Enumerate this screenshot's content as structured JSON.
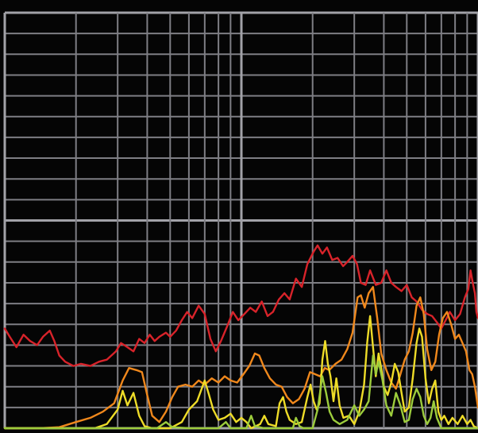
{
  "chart_data": {
    "type": "line",
    "title": "",
    "xlabel": "",
    "ylabel": "",
    "x_scale": "log",
    "x_range": [
      1,
      100
    ],
    "y_range": [
      0,
      20
    ],
    "grid": true,
    "legend": "none",
    "colors": {
      "background": "#050505",
      "grid": "#7e7e84",
      "grid_major": "#a2a2a8"
    },
    "series": [
      {
        "color": "#d8232a",
        "points": [
          [
            1,
            4.8
          ],
          [
            1.05,
            4.4
          ],
          [
            1.12,
            3.9
          ],
          [
            1.2,
            4.5
          ],
          [
            1.28,
            4.2
          ],
          [
            1.37,
            4.0
          ],
          [
            1.45,
            4.4
          ],
          [
            1.55,
            4.7
          ],
          [
            1.62,
            4.2
          ],
          [
            1.7,
            3.5
          ],
          [
            1.8,
            3.2
          ],
          [
            1.95,
            3.0
          ],
          [
            2.1,
            3.1
          ],
          [
            2.3,
            3.0
          ],
          [
            2.5,
            3.2
          ],
          [
            2.7,
            3.3
          ],
          [
            2.95,
            3.7
          ],
          [
            3.1,
            4.1
          ],
          [
            3.3,
            3.9
          ],
          [
            3.5,
            3.7
          ],
          [
            3.7,
            4.3
          ],
          [
            3.9,
            4.1
          ],
          [
            4.1,
            4.5
          ],
          [
            4.3,
            4.2
          ],
          [
            4.5,
            4.4
          ],
          [
            4.8,
            4.6
          ],
          [
            5.0,
            4.4
          ],
          [
            5.3,
            4.7
          ],
          [
            5.6,
            5.2
          ],
          [
            5.9,
            5.6
          ],
          [
            6.2,
            5.3
          ],
          [
            6.6,
            5.9
          ],
          [
            7.0,
            5.5
          ],
          [
            7.4,
            4.3
          ],
          [
            7.8,
            3.7
          ],
          [
            8.2,
            4.2
          ],
          [
            8.7,
            4.9
          ],
          [
            9.2,
            5.6
          ],
          [
            9.7,
            5.2
          ],
          [
            10.3,
            5.5
          ],
          [
            10.9,
            5.8
          ],
          [
            11.5,
            5.6
          ],
          [
            12.2,
            6.1
          ],
          [
            12.9,
            5.4
          ],
          [
            13.6,
            5.6
          ],
          [
            14.4,
            6.2
          ],
          [
            15.2,
            6.5
          ],
          [
            16.0,
            6.2
          ],
          [
            17.0,
            7.2
          ],
          [
            18.0,
            6.8
          ],
          [
            19.0,
            7.9
          ],
          [
            20.2,
            8.5
          ],
          [
            21.0,
            8.8
          ],
          [
            22.0,
            8.4
          ],
          [
            23.0,
            8.7
          ],
          [
            24.2,
            8.1
          ],
          [
            25.5,
            8.2
          ],
          [
            26.9,
            7.8
          ],
          [
            28.0,
            8.0
          ],
          [
            29.5,
            8.3
          ],
          [
            30.8,
            7.9
          ],
          [
            32.0,
            7.0
          ],
          [
            33.5,
            6.9
          ],
          [
            35.0,
            7.6
          ],
          [
            37.0,
            6.9
          ],
          [
            39.0,
            7.0
          ],
          [
            41.0,
            7.6
          ],
          [
            43.0,
            7.0
          ],
          [
            45.0,
            6.8
          ],
          [
            47.5,
            6.6
          ],
          [
            50.0,
            6.9
          ],
          [
            52.5,
            6.3
          ],
          [
            55.0,
            6.1
          ],
          [
            58.0,
            5.7
          ],
          [
            61.0,
            5.5
          ],
          [
            64.0,
            5.4
          ],
          [
            67.0,
            5.1
          ],
          [
            70.0,
            4.8
          ],
          [
            73.0,
            5.2
          ],
          [
            76.0,
            5.6
          ],
          [
            80.0,
            5.2
          ],
          [
            84.0,
            5.5
          ],
          [
            88.0,
            6.3
          ],
          [
            91.0,
            6.7
          ],
          [
            93.0,
            7.6
          ],
          [
            95.0,
            7.0
          ],
          [
            97.0,
            6.5
          ],
          [
            98.5,
            5.6
          ],
          [
            100,
            5.3
          ]
        ]
      },
      {
        "color": "#f0881c",
        "points": [
          [
            1,
            0.0
          ],
          [
            1.4,
            0.0
          ],
          [
            1.7,
            0.05
          ],
          [
            2.0,
            0.3
          ],
          [
            2.3,
            0.5
          ],
          [
            2.6,
            0.8
          ],
          [
            2.9,
            1.2
          ],
          [
            3.15,
            2.3
          ],
          [
            3.35,
            2.9
          ],
          [
            3.6,
            2.8
          ],
          [
            3.8,
            2.7
          ],
          [
            4.0,
            1.6
          ],
          [
            4.2,
            0.6
          ],
          [
            4.5,
            0.3
          ],
          [
            4.8,
            0.8
          ],
          [
            5.1,
            1.5
          ],
          [
            5.4,
            2.0
          ],
          [
            5.8,
            2.1
          ],
          [
            6.2,
            2.0
          ],
          [
            6.6,
            2.3
          ],
          [
            7.0,
            2.1
          ],
          [
            7.5,
            2.4
          ],
          [
            8.0,
            2.2
          ],
          [
            8.5,
            2.5
          ],
          [
            9.0,
            2.3
          ],
          [
            9.6,
            2.2
          ],
          [
            10.2,
            2.6
          ],
          [
            10.8,
            3.0
          ],
          [
            11.4,
            3.6
          ],
          [
            11.9,
            3.5
          ],
          [
            12.5,
            2.9
          ],
          [
            13.2,
            2.4
          ],
          [
            14.0,
            2.1
          ],
          [
            14.8,
            2.0
          ],
          [
            15.6,
            1.5
          ],
          [
            16.5,
            1.2
          ],
          [
            17.5,
            1.4
          ],
          [
            18.5,
            1.9
          ],
          [
            19.5,
            2.7
          ],
          [
            20.5,
            2.6
          ],
          [
            21.5,
            2.5
          ],
          [
            22.5,
            2.9
          ],
          [
            23.5,
            2.8
          ],
          [
            25.0,
            3.1
          ],
          [
            26.5,
            3.3
          ],
          [
            28.0,
            3.8
          ],
          [
            29.5,
            4.6
          ],
          [
            31.0,
            6.3
          ],
          [
            32.0,
            6.4
          ],
          [
            33.2,
            5.8
          ],
          [
            34.5,
            6.5
          ],
          [
            36.0,
            6.8
          ],
          [
            37.5,
            5.3
          ],
          [
            39.0,
            3.6
          ],
          [
            41.0,
            2.8
          ],
          [
            43.0,
            2.2
          ],
          [
            45.0,
            1.9
          ],
          [
            47.0,
            2.6
          ],
          [
            49.0,
            3.3
          ],
          [
            51.0,
            3.7
          ],
          [
            53.0,
            4.6
          ],
          [
            55.0,
            5.9
          ],
          [
            57.0,
            6.3
          ],
          [
            59.0,
            5.5
          ],
          [
            61.0,
            3.8
          ],
          [
            63.5,
            2.8
          ],
          [
            66.0,
            3.2
          ],
          [
            68.5,
            4.5
          ],
          [
            71.0,
            5.3
          ],
          [
            74.0,
            5.6
          ],
          [
            77.0,
            5.0
          ],
          [
            80.0,
            4.3
          ],
          [
            83.0,
            4.5
          ],
          [
            86.0,
            4.1
          ],
          [
            89.0,
            3.7
          ],
          [
            92.0,
            2.8
          ],
          [
            94.5,
            2.6
          ],
          [
            97.0,
            2.0
          ],
          [
            100,
            1.0
          ]
        ]
      },
      {
        "color": "#eedc28",
        "points": [
          [
            1,
            0.0
          ],
          [
            2.4,
            0.0
          ],
          [
            2.7,
            0.2
          ],
          [
            3.0,
            0.9
          ],
          [
            3.15,
            1.8
          ],
          [
            3.3,
            1.1
          ],
          [
            3.5,
            1.7
          ],
          [
            3.7,
            0.6
          ],
          [
            3.9,
            0.1
          ],
          [
            4.2,
            0.0
          ],
          [
            5.0,
            0.0
          ],
          [
            5.6,
            0.3
          ],
          [
            6.0,
            0.9
          ],
          [
            6.5,
            1.3
          ],
          [
            7.0,
            2.3
          ],
          [
            7.3,
            1.6
          ],
          [
            7.6,
            0.9
          ],
          [
            8.0,
            0.4
          ],
          [
            8.5,
            0.5
          ],
          [
            9.0,
            0.7
          ],
          [
            9.5,
            0.3
          ],
          [
            10.0,
            0.5
          ],
          [
            10.5,
            0.3
          ],
          [
            11.0,
            0.0
          ],
          [
            12.0,
            0.2
          ],
          [
            12.5,
            0.6
          ],
          [
            13.0,
            0.2
          ],
          [
            14.0,
            0.1
          ],
          [
            14.5,
            1.2
          ],
          [
            15.0,
            1.5
          ],
          [
            15.5,
            0.8
          ],
          [
            16.0,
            0.4
          ],
          [
            17.0,
            0.2
          ],
          [
            18.0,
            0.3
          ],
          [
            19.0,
            1.5
          ],
          [
            19.6,
            2.1
          ],
          [
            20.2,
            1.3
          ],
          [
            20.8,
            0.9
          ],
          [
            21.4,
            1.2
          ],
          [
            22.0,
            3.3
          ],
          [
            22.6,
            4.2
          ],
          [
            23.2,
            3.1
          ],
          [
            23.8,
            2.5
          ],
          [
            24.5,
            1.3
          ],
          [
            25.2,
            2.4
          ],
          [
            26.0,
            1.1
          ],
          [
            27.0,
            0.5
          ],
          [
            28.5,
            0.6
          ],
          [
            30.0,
            0.2
          ],
          [
            31.5,
            0.8
          ],
          [
            33.0,
            2.1
          ],
          [
            34.0,
            4.1
          ],
          [
            35.0,
            5.4
          ],
          [
            36.0,
            3.9
          ],
          [
            37.0,
            2.5
          ],
          [
            38.0,
            3.6
          ],
          [
            39.0,
            2.9
          ],
          [
            40.0,
            2.0
          ],
          [
            41.5,
            1.6
          ],
          [
            43.0,
            2.2
          ],
          [
            44.5,
            3.1
          ],
          [
            46.0,
            2.7
          ],
          [
            47.5,
            1.7
          ],
          [
            49.0,
            0.8
          ],
          [
            51.0,
            1.0
          ],
          [
            53.0,
            2.4
          ],
          [
            55.0,
            4.1
          ],
          [
            56.5,
            4.8
          ],
          [
            58.0,
            4.4
          ],
          [
            60.0,
            2.4
          ],
          [
            62.0,
            1.2
          ],
          [
            64.0,
            1.9
          ],
          [
            66.0,
            2.3
          ],
          [
            68.0,
            0.8
          ],
          [
            70.0,
            0.4
          ],
          [
            72.0,
            0.6
          ],
          [
            75.0,
            0.2
          ],
          [
            78.0,
            0.5
          ],
          [
            82.0,
            0.2
          ],
          [
            86.0,
            0.6
          ],
          [
            90.0,
            0.2
          ],
          [
            93.0,
            0.4
          ],
          [
            96.0,
            0.1
          ],
          [
            100,
            0.0
          ]
        ]
      },
      {
        "color": "#9ccc3c",
        "points": [
          [
            1,
            0.0
          ],
          [
            4.4,
            0.0
          ],
          [
            4.8,
            0.3
          ],
          [
            5.1,
            0.05
          ],
          [
            6.0,
            0.0
          ],
          [
            8.0,
            0.0
          ],
          [
            8.6,
            0.3
          ],
          [
            9.0,
            0.0
          ],
          [
            10.5,
            0.0
          ],
          [
            11.0,
            0.6
          ],
          [
            11.4,
            0.1
          ],
          [
            12.5,
            0.0
          ],
          [
            16.5,
            0.0
          ],
          [
            17.0,
            0.5
          ],
          [
            17.6,
            0.1
          ],
          [
            18.3,
            0.0
          ],
          [
            20.0,
            0.0
          ],
          [
            21.0,
            0.9
          ],
          [
            22.0,
            2.5
          ],
          [
            22.8,
            1.7
          ],
          [
            23.6,
            0.8
          ],
          [
            24.5,
            0.4
          ],
          [
            26.0,
            0.2
          ],
          [
            28.0,
            0.4
          ],
          [
            30.0,
            1.1
          ],
          [
            31.5,
            0.6
          ],
          [
            33.0,
            0.9
          ],
          [
            34.5,
            1.3
          ],
          [
            36.0,
            3.5
          ],
          [
            37.0,
            2.6
          ],
          [
            38.0,
            3.2
          ],
          [
            39.5,
            2.3
          ],
          [
            41.0,
            1.1
          ],
          [
            43.0,
            0.6
          ],
          [
            45.0,
            1.7
          ],
          [
            47.0,
            1.1
          ],
          [
            49.0,
            0.3
          ],
          [
            51.0,
            0.4
          ],
          [
            53.0,
            1.4
          ],
          [
            55.0,
            1.9
          ],
          [
            57.0,
            1.5
          ],
          [
            59.0,
            0.6
          ],
          [
            61.0,
            0.2
          ],
          [
            63.0,
            0.5
          ],
          [
            65.0,
            1.3
          ],
          [
            67.0,
            0.5
          ],
          [
            70.0,
            0.0
          ],
          [
            100,
            0.0
          ]
        ]
      }
    ]
  }
}
